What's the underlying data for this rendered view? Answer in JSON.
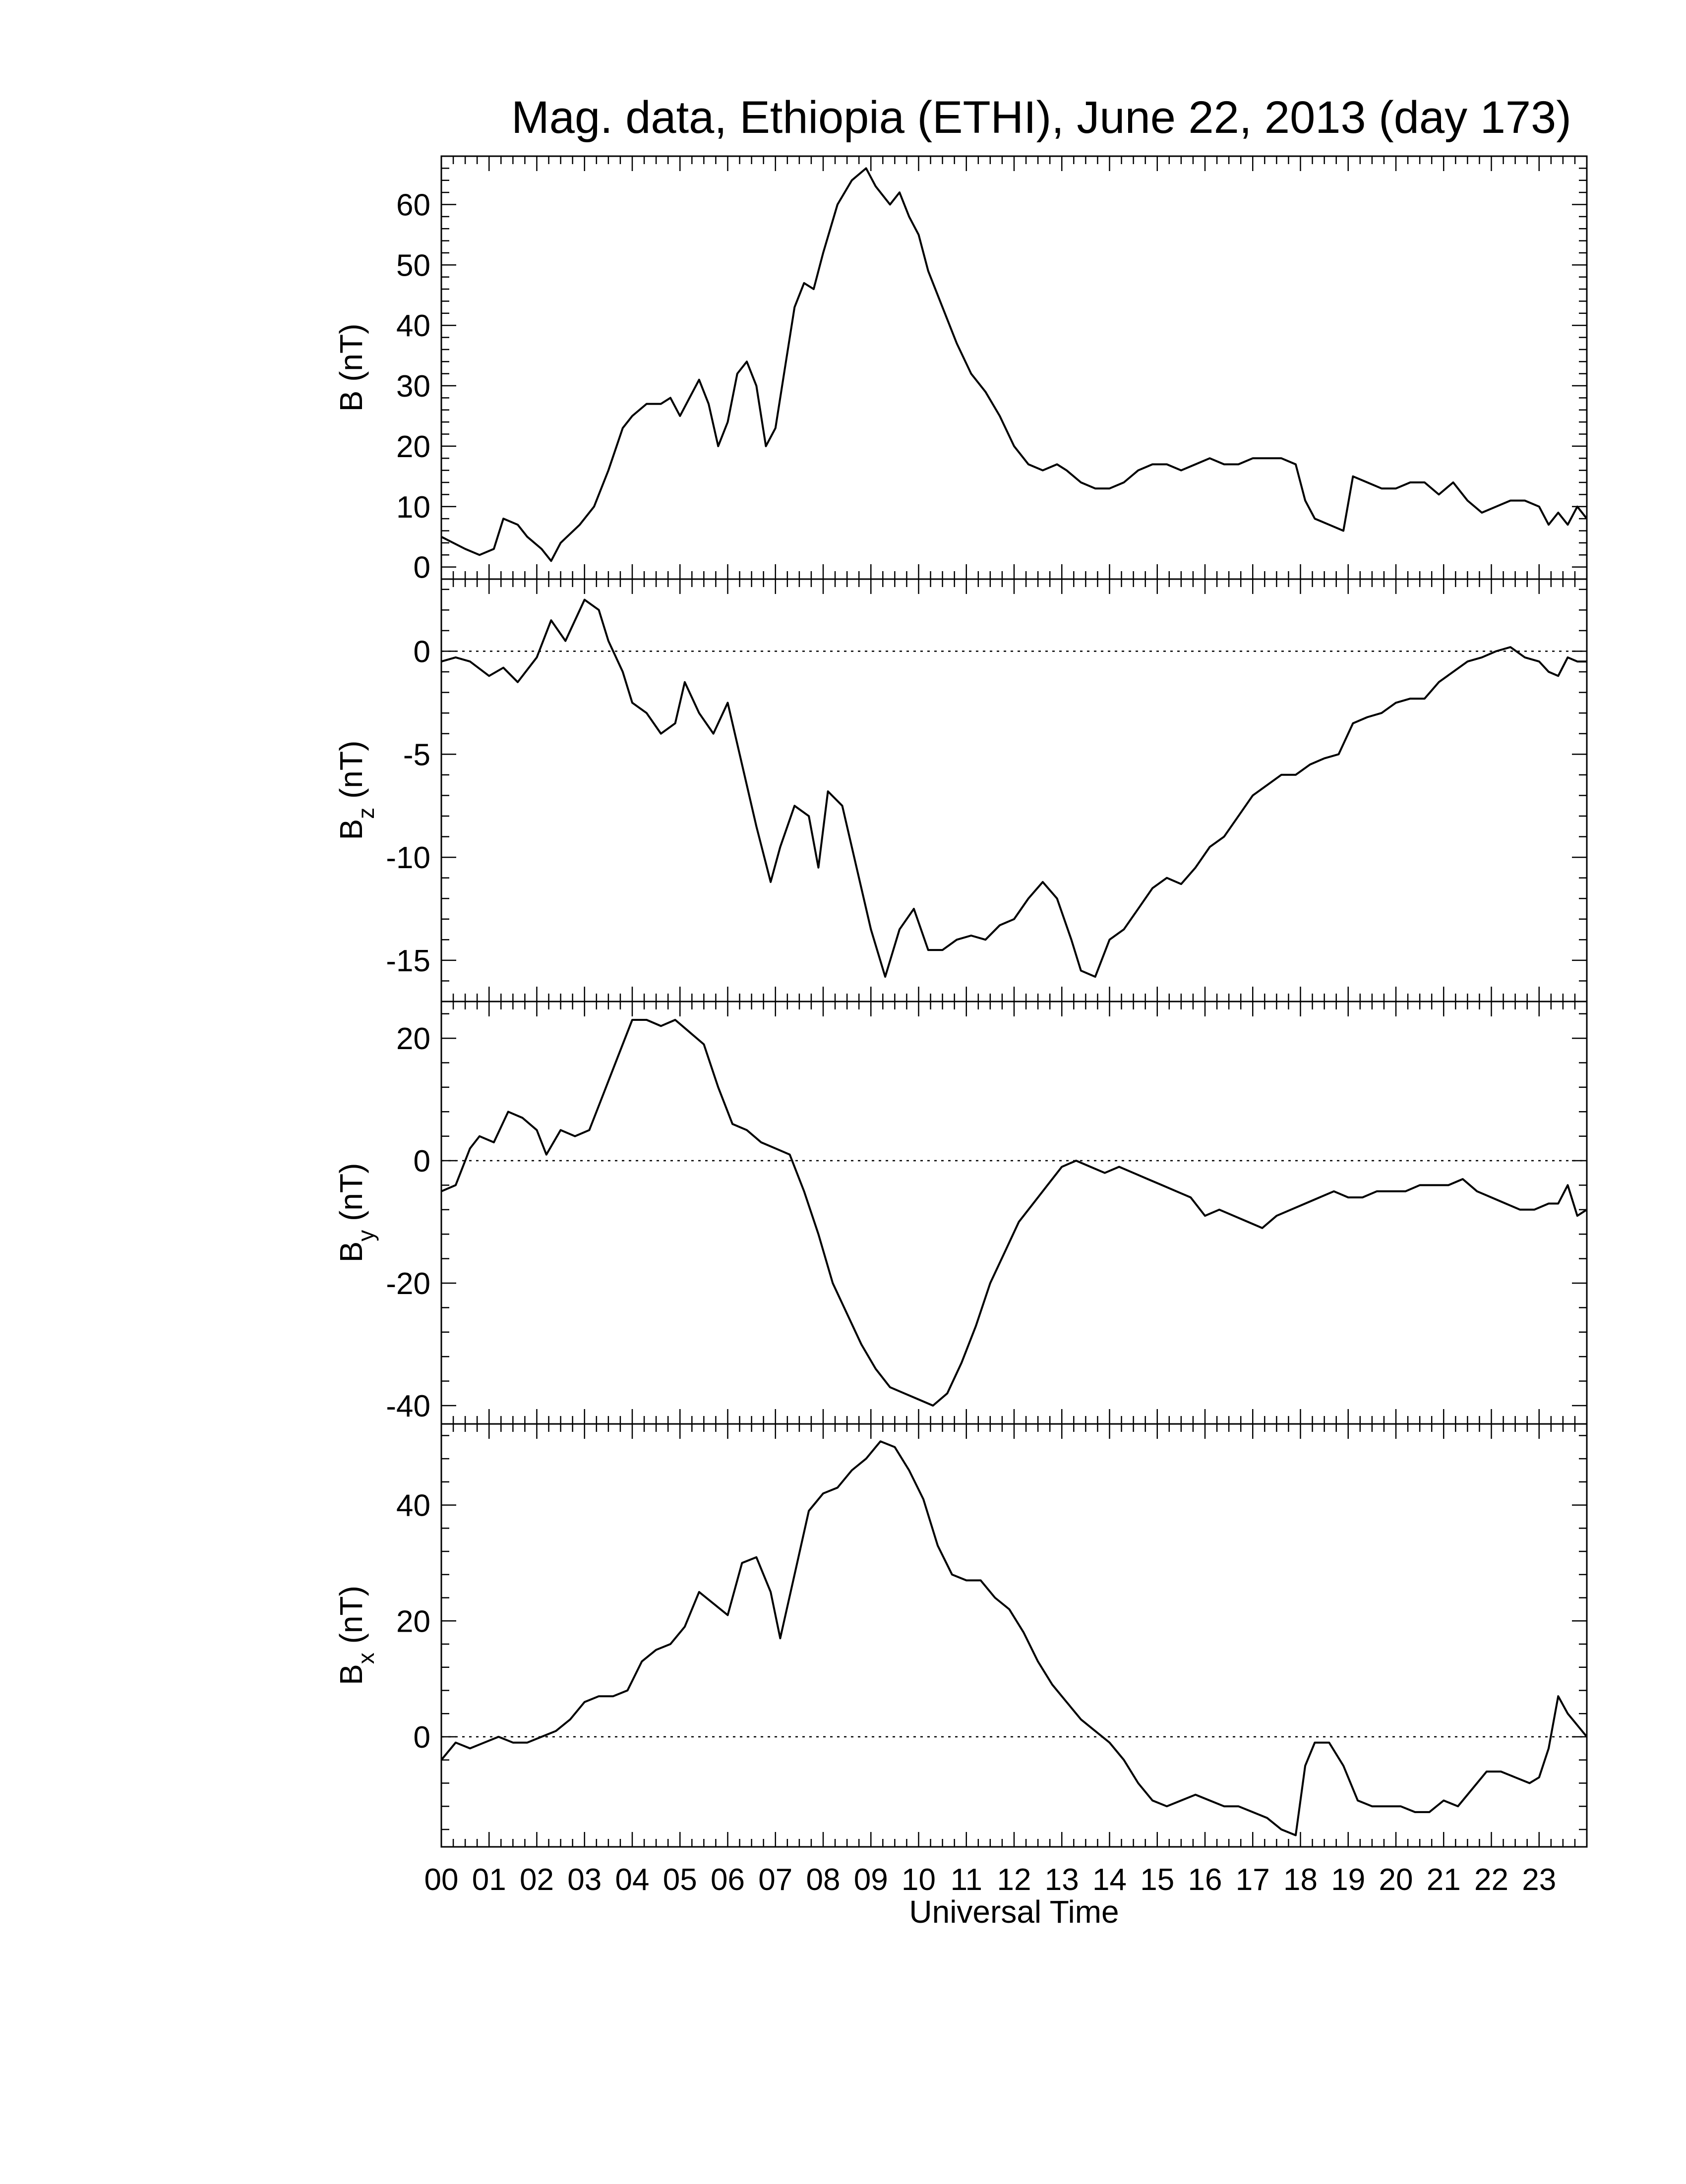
{
  "title": "Mag. data, Ethiopia (ETHI), June 22, 2013 (day 173)",
  "xlabel": "Universal Time",
  "x_tick_labels": [
    "00",
    "01",
    "02",
    "03",
    "04",
    "05",
    "06",
    "07",
    "08",
    "09",
    "10",
    "11",
    "12",
    "13",
    "14",
    "15",
    "16",
    "17",
    "18",
    "19",
    "20",
    "21",
    "22",
    "23"
  ],
  "chart_data": [
    {
      "type": "line",
      "panel": "B",
      "ylabel": "B (nT)",
      "ylabel_main": "B",
      "ylabel_sub": "",
      "ylabel_unit": " (nT)",
      "ylim": [
        -2,
        68
      ],
      "yticks": [
        0,
        10,
        20,
        30,
        40,
        50,
        60
      ],
      "zero_line": false,
      "x_unit": "hours UT",
      "x": [
        0,
        0.5,
        0.8,
        1.1,
        1.3,
        1.6,
        1.8,
        2.1,
        2.3,
        2.5,
        2.9,
        3.2,
        3.5,
        3.8,
        4.0,
        4.3,
        4.6,
        4.8,
        5.0,
        5.2,
        5.4,
        5.6,
        5.8,
        6.0,
        6.2,
        6.4,
        6.6,
        6.8,
        7.0,
        7.2,
        7.4,
        7.6,
        7.8,
        8.0,
        8.3,
        8.6,
        8.9,
        9.1,
        9.4,
        9.6,
        9.8,
        10.0,
        10.2,
        10.5,
        10.8,
        11.1,
        11.4,
        11.7,
        12.0,
        12.3,
        12.6,
        12.9,
        13.1,
        13.4,
        13.7,
        14.0,
        14.3,
        14.6,
        14.9,
        15.2,
        15.5,
        15.8,
        16.1,
        16.4,
        16.7,
        17.0,
        17.3,
        17.6,
        17.9,
        18.1,
        18.3,
        18.6,
        18.9,
        19.1,
        19.4,
        19.7,
        20.0,
        20.3,
        20.6,
        20.9,
        21.2,
        21.5,
        21.8,
        22.1,
        22.4,
        22.7,
        23.0,
        23.2,
        23.4,
        23.6,
        23.8,
        24.0
      ],
      "values": [
        5,
        3,
        2,
        3,
        8,
        7,
        5,
        3,
        1,
        4,
        7,
        10,
        16,
        23,
        25,
        27,
        27,
        28,
        25,
        28,
        31,
        27,
        20,
        24,
        32,
        34,
        30,
        20,
        23,
        33,
        43,
        47,
        46,
        52,
        60,
        64,
        66,
        63,
        60,
        62,
        58,
        55,
        49,
        43,
        37,
        32,
        29,
        25,
        20,
        17,
        16,
        17,
        16,
        14,
        13,
        13,
        14,
        16,
        17,
        17,
        16,
        17,
        18,
        17,
        17,
        18,
        18,
        18,
        17,
        11,
        8,
        7,
        6,
        15,
        14,
        13,
        13,
        14,
        14,
        12,
        14,
        11,
        9,
        10,
        11,
        11,
        10,
        7,
        9,
        7,
        10,
        8
      ]
    },
    {
      "type": "line",
      "panel": "Bz",
      "ylabel": "Bz (nT)",
      "ylabel_main": "B",
      "ylabel_sub": "z",
      "ylabel_unit": " (nT)",
      "ylim": [
        -17,
        3.5
      ],
      "yticks": [
        0,
        -5,
        -10,
        -15
      ],
      "zero_line": true,
      "x_unit": "hours UT",
      "x": [
        0,
        0.3,
        0.6,
        1.0,
        1.3,
        1.6,
        2.0,
        2.3,
        2.6,
        3.0,
        3.3,
        3.5,
        3.8,
        4.0,
        4.3,
        4.6,
        4.9,
        5.1,
        5.4,
        5.7,
        6.0,
        6.3,
        6.6,
        6.9,
        7.1,
        7.4,
        7.7,
        7.9,
        8.1,
        8.4,
        8.7,
        9.0,
        9.3,
        9.6,
        9.9,
        10.2,
        10.5,
        10.8,
        11.1,
        11.4,
        11.7,
        12.0,
        12.3,
        12.6,
        12.9,
        13.2,
        13.4,
        13.7,
        14.0,
        14.3,
        14.6,
        14.9,
        15.2,
        15.5,
        15.8,
        16.1,
        16.4,
        16.7,
        17.0,
        17.3,
        17.6,
        17.9,
        18.2,
        18.5,
        18.8,
        19.1,
        19.4,
        19.7,
        20.0,
        20.3,
        20.6,
        20.9,
        21.2,
        21.5,
        21.8,
        22.1,
        22.4,
        22.7,
        23.0,
        23.2,
        23.4,
        23.6,
        23.8,
        24.0
      ],
      "values": [
        -0.5,
        -0.3,
        -0.5,
        -1.2,
        -0.8,
        -1.5,
        -0.3,
        1.5,
        0.5,
        2.5,
        2.0,
        0.5,
        -1.0,
        -2.5,
        -3.0,
        -4.0,
        -3.5,
        -1.5,
        -3.0,
        -4.0,
        -2.5,
        -5.5,
        -8.5,
        -11.2,
        -9.5,
        -7.5,
        -8.0,
        -10.5,
        -6.8,
        -7.5,
        -10.5,
        -13.5,
        -15.8,
        -13.5,
        -12.5,
        -14.5,
        -14.5,
        -14.0,
        -13.8,
        -14.0,
        -13.3,
        -13.0,
        -12.0,
        -11.2,
        -12.0,
        -14.0,
        -15.5,
        -15.8,
        -14.0,
        -13.5,
        -12.5,
        -11.5,
        -11.0,
        -11.3,
        -10.5,
        -9.5,
        -9.0,
        -8.0,
        -7.0,
        -6.5,
        -6.0,
        -6.0,
        -5.5,
        -5.2,
        -5.0,
        -3.5,
        -3.2,
        -3.0,
        -2.5,
        -2.3,
        -2.3,
        -1.5,
        -1.0,
        -0.5,
        -0.3,
        0,
        0.2,
        -0.3,
        -0.5,
        -1.0,
        -1.2,
        -0.3,
        -0.5,
        -0.5
      ]
    },
    {
      "type": "line",
      "panel": "By",
      "ylabel": "By (nT)",
      "ylabel_main": "B",
      "ylabel_sub": "y",
      "ylabel_unit": " (nT)",
      "ylim": [
        -43,
        26
      ],
      "yticks": [
        20,
        0,
        -20,
        -40
      ],
      "zero_line": true,
      "x_unit": "hours UT",
      "x": [
        0,
        0.3,
        0.6,
        0.8,
        1.1,
        1.4,
        1.7,
        2.0,
        2.2,
        2.5,
        2.8,
        3.1,
        3.4,
        3.7,
        4.0,
        4.3,
        4.6,
        4.9,
        5.2,
        5.5,
        5.8,
        6.1,
        6.4,
        6.7,
        7.0,
        7.3,
        7.6,
        7.9,
        8.2,
        8.5,
        8.8,
        9.1,
        9.4,
        9.7,
        10.0,
        10.3,
        10.6,
        10.9,
        11.2,
        11.5,
        11.8,
        12.1,
        12.4,
        12.7,
        13.0,
        13.3,
        13.6,
        13.9,
        14.2,
        14.5,
        14.8,
        15.1,
        15.4,
        15.7,
        16.0,
        16.3,
        16.6,
        16.9,
        17.2,
        17.5,
        17.8,
        18.1,
        18.4,
        18.7,
        19.0,
        19.3,
        19.6,
        19.9,
        20.2,
        20.5,
        20.8,
        21.1,
        21.4,
        21.7,
        22.0,
        22.3,
        22.6,
        22.9,
        23.2,
        23.4,
        23.6,
        23.8,
        24.0
      ],
      "values": [
        -5,
        -4,
        2,
        4,
        3,
        8,
        7,
        5,
        1,
        5,
        4,
        5,
        11,
        17,
        23,
        23,
        22,
        23,
        21,
        19,
        12,
        6,
        5,
        3,
        2,
        1,
        -5,
        -12,
        -20,
        -25,
        -30,
        -34,
        -37,
        -38,
        -39,
        -40,
        -38,
        -33,
        -27,
        -20,
        -15,
        -10,
        -7,
        -4,
        -1,
        0,
        -1,
        -2,
        -1,
        -2,
        -3,
        -4,
        -5,
        -6,
        -9,
        -8,
        -9,
        -10,
        -11,
        -9,
        -8,
        -7,
        -6,
        -5,
        -6,
        -6,
        -5,
        -5,
        -5,
        -4,
        -4,
        -4,
        -3,
        -5,
        -6,
        -7,
        -8,
        -8,
        -7,
        -7,
        -4,
        -9,
        -8
      ]
    },
    {
      "type": "line",
      "panel": "Bx",
      "ylabel": "Bx (nT)",
      "ylabel_main": "B",
      "ylabel_sub": "x",
      "ylabel_unit": " (nT)",
      "ylim": [
        -19,
        54
      ],
      "yticks": [
        40,
        20,
        0
      ],
      "zero_line": true,
      "x_unit": "hours UT",
      "x": [
        0,
        0.3,
        0.6,
        0.9,
        1.2,
        1.5,
        1.8,
        2.1,
        2.4,
        2.7,
        3.0,
        3.3,
        3.6,
        3.9,
        4.2,
        4.5,
        4.8,
        5.1,
        5.4,
        5.7,
        6.0,
        6.3,
        6.6,
        6.9,
        7.1,
        7.4,
        7.7,
        8.0,
        8.3,
        8.6,
        8.9,
        9.2,
        9.5,
        9.8,
        10.1,
        10.4,
        10.7,
        11.0,
        11.3,
        11.6,
        11.9,
        12.2,
        12.5,
        12.8,
        13.1,
        13.4,
        13.7,
        14.0,
        14.3,
        14.6,
        14.9,
        15.2,
        15.5,
        15.8,
        16.1,
        16.4,
        16.7,
        17.0,
        17.3,
        17.6,
        17.9,
        18.1,
        18.3,
        18.6,
        18.9,
        19.2,
        19.5,
        19.8,
        20.1,
        20.4,
        20.7,
        21.0,
        21.3,
        21.6,
        21.9,
        22.2,
        22.5,
        22.8,
        23.0,
        23.2,
        23.4,
        23.6,
        23.8,
        24.0
      ],
      "values": [
        -4,
        -1,
        -2,
        -1,
        0,
        -1,
        -1,
        0,
        1,
        3,
        6,
        7,
        7,
        8,
        13,
        15,
        16,
        19,
        25,
        23,
        21,
        30,
        31,
        25,
        17,
        28,
        39,
        42,
        43,
        46,
        48,
        51,
        50,
        46,
        41,
        33,
        28,
        27,
        27,
        24,
        22,
        18,
        13,
        9,
        6,
        3,
        1,
        -1,
        -4,
        -8,
        -11,
        -12,
        -11,
        -10,
        -11,
        -12,
        -12,
        -13,
        -14,
        -16,
        -17,
        -5,
        -1,
        -1,
        -5,
        -11,
        -12,
        -12,
        -12,
        -13,
        -13,
        -11,
        -12,
        -9,
        -6,
        -6,
        -7,
        -8,
        -7,
        -2,
        7,
        4,
        2,
        0
      ]
    }
  ]
}
